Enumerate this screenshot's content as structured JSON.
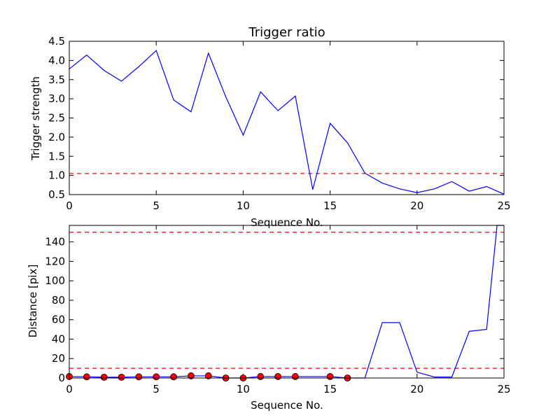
{
  "chart_data": [
    {
      "type": "line",
      "title": "Trigger ratio",
      "xlabel": "Sequence No.",
      "ylabel": "Trigger strength",
      "xlim": [
        0,
        25
      ],
      "ylim": [
        0.5,
        4.5
      ],
      "xticks": [
        "0",
        "5",
        "10",
        "15",
        "20",
        "25"
      ],
      "yticks": [
        "0.5",
        "1.0",
        "1.5",
        "2.0",
        "2.5",
        "3.0",
        "3.5",
        "4.0",
        "4.5"
      ],
      "series": [
        {
          "color": "#0000ff",
          "x": [
            0,
            1,
            2,
            3,
            4,
            5,
            6,
            7,
            8,
            9,
            10,
            11,
            12,
            13,
            14,
            15,
            16,
            17,
            18,
            19,
            20,
            21,
            22,
            23,
            24,
            25
          ],
          "values": [
            3.78,
            4.14,
            3.74,
            3.46,
            3.84,
            4.26,
            2.97,
            2.66,
            4.19,
            3.05,
            2.05,
            3.18,
            2.69,
            3.07,
            0.63,
            2.36,
            1.85,
            1.06,
            0.8,
            0.65,
            0.55,
            0.65,
            0.84,
            0.59,
            0.71,
            0.51
          ]
        }
      ],
      "hlines": [
        {
          "y": 1.05,
          "color": "#ff0000",
          "style": "dashed"
        }
      ]
    },
    {
      "type": "line",
      "title": "",
      "xlabel": "Sequence No.",
      "ylabel": "Distance [pix]",
      "xlim": [
        0,
        25
      ],
      "ylim": [
        0,
        157
      ],
      "xticks": [
        "0",
        "5",
        "10",
        "15",
        "20",
        "25"
      ],
      "yticks": [
        "0",
        "20",
        "40",
        "60",
        "80",
        "100",
        "120",
        "140"
      ],
      "series": [
        {
          "color": "#0000ff",
          "x": [
            0,
            1,
            2,
            3,
            4,
            5,
            6,
            7,
            8,
            9,
            10,
            11,
            12,
            13,
            14,
            15,
            16,
            17,
            18,
            19,
            20,
            21,
            22,
            23,
            24,
            24.6,
            25
          ],
          "values": [
            1.5,
            1.2,
            0.8,
            0.8,
            1.2,
            1.2,
            1.2,
            2.2,
            2.2,
            0,
            0,
            1.5,
            1.5,
            1.5,
            1.5,
            1.5,
            0,
            0,
            57,
            57,
            6,
            1,
            1,
            48,
            50,
            157,
            157
          ]
        },
        {
          "type": "scatter",
          "color": "#ff0000",
          "x": [
            0,
            1,
            2,
            3,
            4,
            5,
            6,
            7,
            8,
            9,
            10,
            11,
            12,
            13,
            15,
            16
          ],
          "values": [
            1.5,
            1.2,
            0.8,
            0.8,
            1.2,
            1.2,
            1.2,
            2.2,
            2.2,
            0,
            0,
            1.5,
            1.5,
            1.5,
            1.5,
            0
          ]
        }
      ],
      "hlines": [
        {
          "y": 150,
          "color": "#ff0000",
          "style": "dashed"
        },
        {
          "y": 10,
          "color": "#ff0000",
          "style": "dashed"
        }
      ]
    }
  ]
}
